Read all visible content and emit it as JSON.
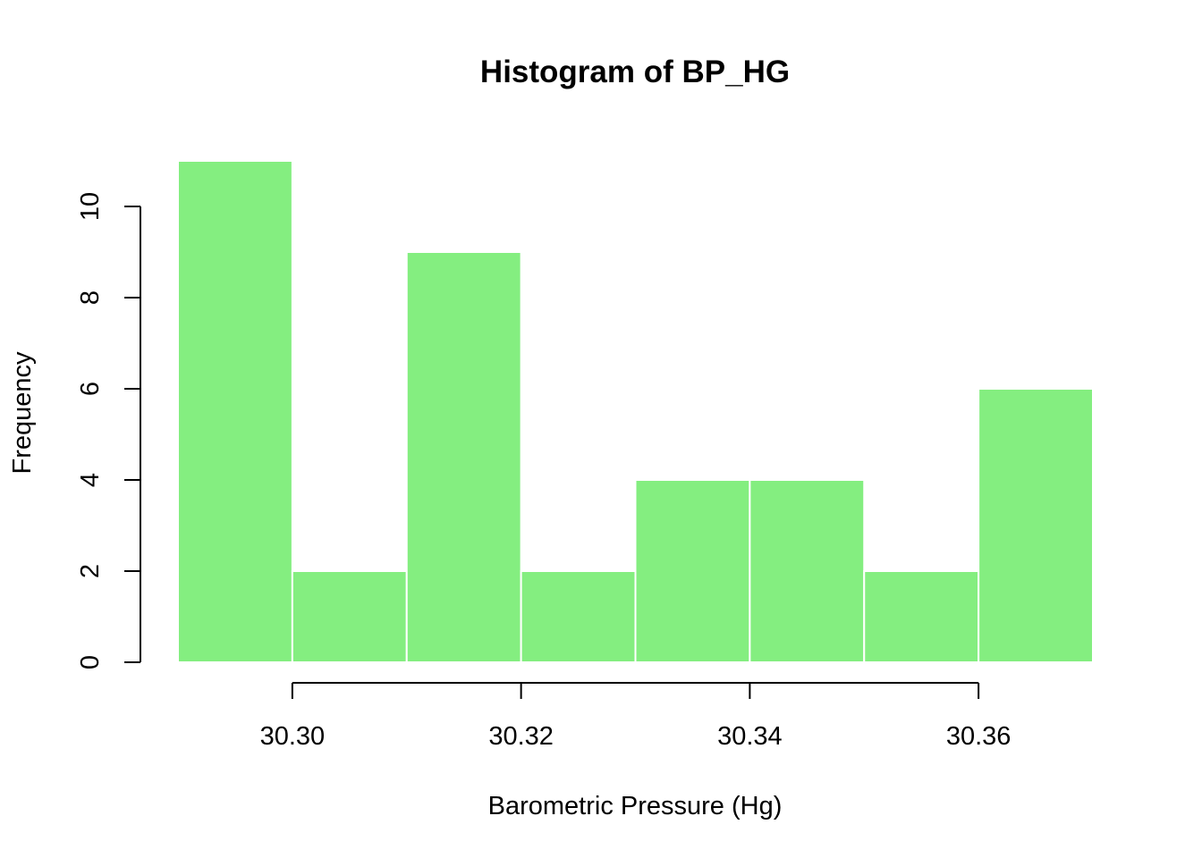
{
  "chart_data": {
    "type": "bar",
    "title": "Histogram of BP_HG",
    "xlabel": "Barometric Pressure (Hg)",
    "ylabel": "Frequency",
    "bins": [
      {
        "start": 30.29,
        "end": 30.3,
        "count": 11
      },
      {
        "start": 30.3,
        "end": 30.31,
        "count": 2
      },
      {
        "start": 30.31,
        "end": 30.32,
        "count": 9
      },
      {
        "start": 30.32,
        "end": 30.33,
        "count": 2
      },
      {
        "start": 30.33,
        "end": 30.34,
        "count": 4
      },
      {
        "start": 30.34,
        "end": 30.35,
        "count": 4
      },
      {
        "start": 30.35,
        "end": 30.36,
        "count": 2
      },
      {
        "start": 30.36,
        "end": 30.37,
        "count": 6
      }
    ],
    "xticks": [
      {
        "value": 30.3,
        "label": "30.30"
      },
      {
        "value": 30.32,
        "label": "30.32"
      },
      {
        "value": 30.34,
        "label": "30.34"
      },
      {
        "value": 30.36,
        "label": "30.36"
      }
    ],
    "yticks": [
      {
        "value": 0,
        "label": "0"
      },
      {
        "value": 2,
        "label": "2"
      },
      {
        "value": 4,
        "label": "4"
      },
      {
        "value": 6,
        "label": "6"
      },
      {
        "value": 8,
        "label": "8"
      },
      {
        "value": 10,
        "label": "10"
      }
    ],
    "xlim": [
      30.29,
      30.37
    ],
    "ylim": [
      0,
      11
    ],
    "grid": false,
    "bar_color": "#84ee80",
    "bar_border_color": "#ffffff"
  }
}
